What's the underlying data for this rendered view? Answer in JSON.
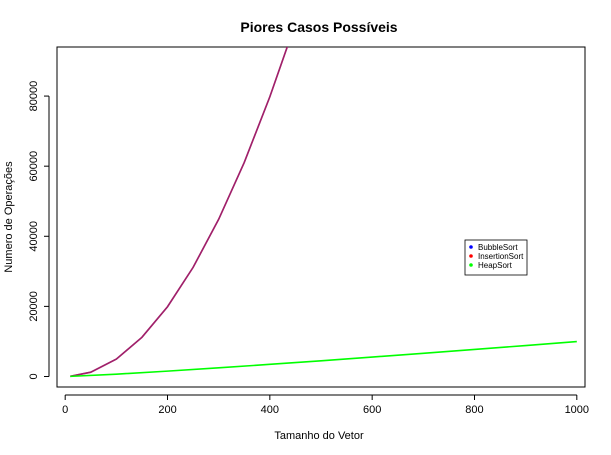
{
  "chart_data": {
    "type": "line",
    "title": "Piores Casos Possíveis",
    "xlabel": "Tamanho do Vetor",
    "ylabel": "Numero de Operações",
    "xlim": [
      -16,
      1016
    ],
    "ylim": [
      -3000,
      94000
    ],
    "x_ticks": [
      0,
      200,
      400,
      600,
      800,
      1000
    ],
    "y_ticks": [
      0,
      20000,
      40000,
      60000,
      80000
    ],
    "grid": false,
    "legend_position": "right",
    "series": [
      {
        "name": "BubbleSort",
        "color": "#0000ff",
        "x": [
          10,
          50,
          100,
          150,
          200,
          250,
          300,
          350,
          400,
          437
        ],
        "y": [
          45,
          1225,
          4950,
          11175,
          19900,
          31125,
          44850,
          61075,
          79800,
          95266
        ]
      },
      {
        "name": "InsertionSort",
        "color": "#ff0000",
        "x": [
          10,
          50,
          100,
          150,
          200,
          250,
          300,
          350,
          400,
          437
        ],
        "y": [
          45,
          1225,
          4950,
          11175,
          19900,
          31125,
          44850,
          61075,
          79800,
          95266
        ]
      },
      {
        "name": "HeapSort",
        "color": "#00ff00",
        "x": [
          10,
          100,
          200,
          300,
          400,
          500,
          600,
          700,
          800,
          900,
          1000
        ],
        "y": [
          33,
          664,
          1529,
          2469,
          3458,
          4483,
          5537,
          6615,
          7715,
          8832,
          9966
        ]
      }
    ],
    "overlap_color": "#a0206a"
  }
}
